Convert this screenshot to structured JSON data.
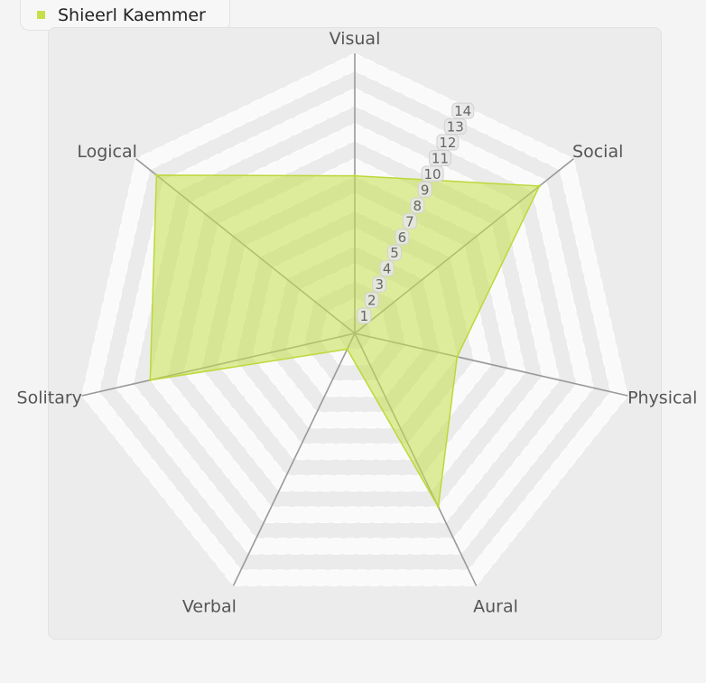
{
  "legend": {
    "label": "Shieerl Kaemmer"
  },
  "colors": {
    "series": "#c5e04a",
    "series_fill": "rgba(197,224,74,0.55)",
    "series_stroke": "#bcd83a",
    "axis": "#999999",
    "band_light": "#fafafa",
    "band_dark": "#ebebeb",
    "scale_label_bg": "#e6e6e6",
    "scale_label_border": "#d2d2d2"
  },
  "chart_data": {
    "type": "radar",
    "axes": [
      "Visual",
      "Social",
      "Physical",
      "Aural",
      "Verbal",
      "Solitary",
      "Logical"
    ],
    "scale_labels": [
      "1",
      "2",
      "3",
      "4",
      "5",
      "6",
      "7",
      "8",
      "9",
      "10",
      "11",
      "12",
      "13",
      "14"
    ],
    "series": [
      {
        "name": "Shieerl Kaemmer",
        "values": [
          9,
          13.5,
          6,
          11,
          1,
          12,
          14.5
        ]
      }
    ],
    "rmin": 0,
    "rmax": 16,
    "grid": true,
    "legend_position": "top-left"
  }
}
